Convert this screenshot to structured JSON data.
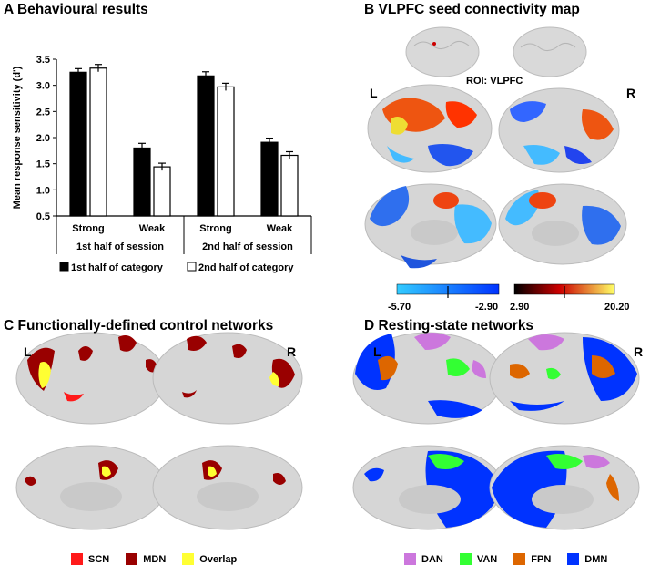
{
  "panels": {
    "a": {
      "letter": "A",
      "title": "Behavioural results"
    },
    "b": {
      "letter": "B",
      "title": "VLPFC seed connectivity map",
      "roi_label": "ROI: VLPFC",
      "left_label": "L",
      "right_label": "R",
      "colorbar_neg": {
        "min": "-5.70",
        "max": "-2.90"
      },
      "colorbar_pos": {
        "min": "2.90",
        "max": "20.20"
      },
      "colors": {
        "neg_low": "#33ccff",
        "neg_high": "#0033ff",
        "pos_low": "#000000",
        "pos_mid": "#cc0000",
        "pos_high": "#ffff66"
      }
    },
    "c": {
      "letter": "C",
      "title": "Functionally-defined control networks",
      "left_label": "L",
      "right_label": "R",
      "legend": [
        {
          "label": "SCN",
          "color": "#ff1a1a"
        },
        {
          "label": "MDN",
          "color": "#990000"
        },
        {
          "label": "Overlap",
          "color": "#ffff33"
        }
      ]
    },
    "d": {
      "letter": "D",
      "title": "Resting-state networks",
      "left_label": "L",
      "right_label": "R",
      "legend": [
        {
          "label": "DAN",
          "color": "#cc77dd"
        },
        {
          "label": "VAN",
          "color": "#33ff33"
        },
        {
          "label": "FPN",
          "color": "#dd6600"
        },
        {
          "label": "DMN",
          "color": "#0033ff"
        }
      ]
    }
  },
  "chart_data": {
    "type": "bar",
    "ylabel": "Mean response sensitivity (d')",
    "ylim": [
      0.5,
      3.5
    ],
    "yticks": [
      "0.5",
      "1.0",
      "1.5",
      "2.0",
      "2.5",
      "3.0",
      "3.5"
    ],
    "categories": [
      "Strong",
      "Weak",
      "Strong",
      "Weak"
    ],
    "groups": [
      "1st half of session",
      "2nd half of session"
    ],
    "series": [
      {
        "name": "1st half of category",
        "color": "#000000",
        "values": [
          3.25,
          1.8,
          3.18,
          1.91
        ],
        "errors": [
          0.07,
          0.09,
          0.08,
          0.08
        ]
      },
      {
        "name": "2nd half of category",
        "color": "#ffffff",
        "values": [
          3.33,
          1.44,
          2.97,
          1.66
        ],
        "errors": [
          0.07,
          0.07,
          0.07,
          0.07
        ]
      }
    ],
    "legend_position": "bottom"
  }
}
